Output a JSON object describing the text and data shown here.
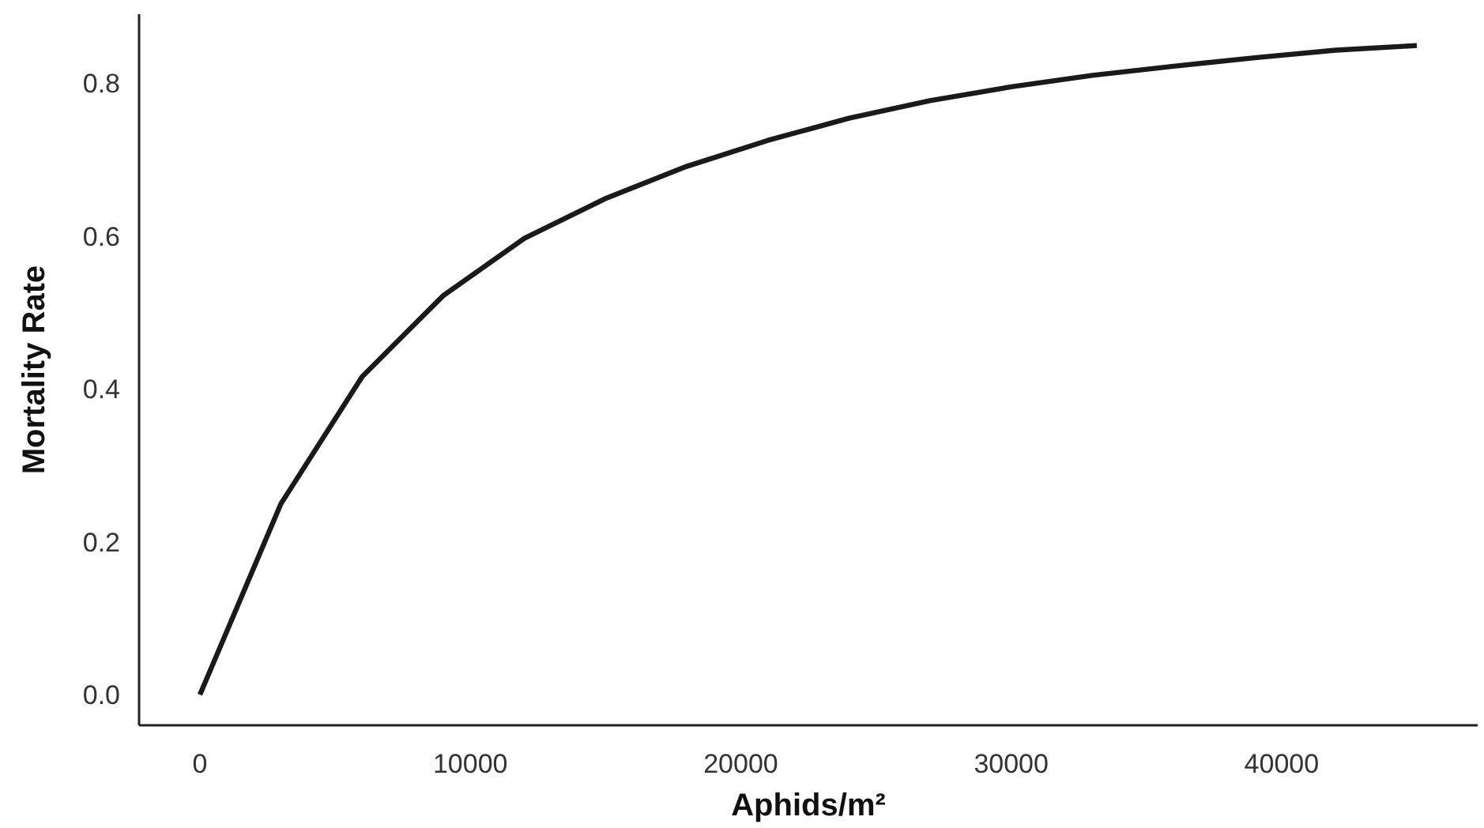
{
  "chart_data": {
    "type": "line",
    "xlabel": "Aphids/m²",
    "ylabel": "Mortality Rate",
    "x": [
      0,
      3000,
      6000,
      9000,
      12000,
      15000,
      18000,
      21000,
      24000,
      27000,
      30000,
      33000,
      36000,
      39000,
      42000,
      45000
    ],
    "series": [
      {
        "color": "#1a1a1a",
        "values": [
          0,
          0.25,
          0.416,
          0.522,
          0.597,
          0.649,
          0.691,
          0.725,
          0.754,
          0.777,
          0.795,
          0.81,
          0.822,
          0.833,
          0.843,
          0.849
        ]
      }
    ],
    "xlim": [
      -2250,
      47250
    ],
    "ylim": [
      -0.04,
      0.89
    ],
    "xticks": [
      0,
      10000,
      20000,
      30000,
      40000
    ],
    "yticks": [
      {
        "value": 0,
        "label": "0.0"
      },
      {
        "value": 0.2,
        "label": "0.2"
      },
      {
        "value": 0.4,
        "label": "0.4"
      },
      {
        "value": 0.6,
        "label": "0.6"
      },
      {
        "value": 0.8,
        "label": "0.8"
      }
    ],
    "grid": false,
    "marker": "none",
    "line_style": "solid"
  }
}
